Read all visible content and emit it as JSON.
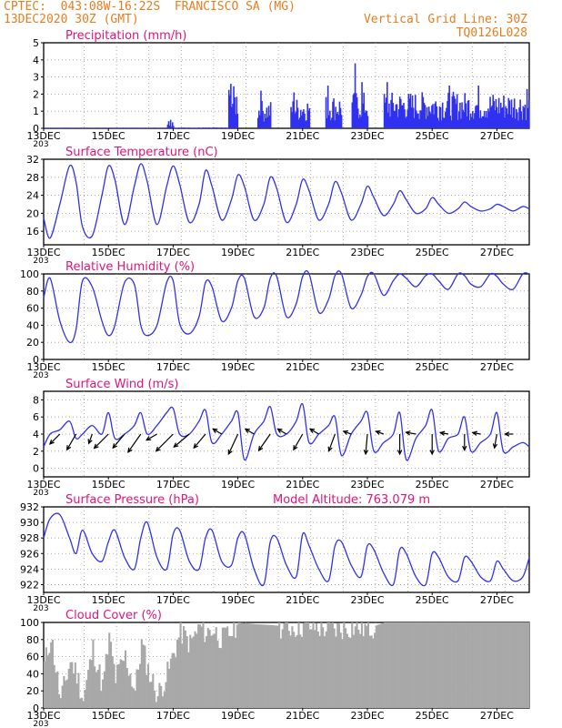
{
  "header": {
    "line1": "CPTEC:  043:08W-16:22S  FRANCISCO SA (MG)",
    "line2": "13DEC2020 30Z (GMT)",
    "grid_note": "Vertical Grid Line: 30Z",
    "code": "TQ0126L028"
  },
  "colors": {
    "header": "#e87d1e",
    "title": "#e0147c",
    "series": "#3030f0",
    "cloud": "#a8a8a8",
    "grid": "#999999"
  },
  "x_axis": {
    "days_from": 13,
    "days_to": 28,
    "tick_labels": [
      "13DEC",
      "15DEC",
      "17DEC",
      "19DEC",
      "21DEC",
      "23DEC",
      "25DEC",
      "27DEC"
    ],
    "cut_label": "203"
  },
  "chart_data": [
    {
      "id": "precip",
      "type": "bar",
      "title": "Precipitation (mm/h)",
      "ylim": [
        0,
        5
      ],
      "yticks": [
        0,
        1,
        2,
        3,
        4,
        5
      ],
      "color": "#3030f0",
      "x": [
        13,
        28
      ],
      "note": "values are hourly precipitation; dry until ~16.8 DEC, bursts 18.7–19.0, 19.6–20.0, 20.6–21.2, 21.7–22.2, 22.5–23.0 (peak ~3.8 at 22.6), continuous 23.5–28 mostly 1–2.4",
      "segments": [
        {
          "x": [
            13,
            16.8
          ],
          "level": 0.02
        },
        {
          "x": [
            16.8,
            17.0
          ],
          "level": 0.3
        },
        {
          "x": [
            17.0,
            18.7
          ],
          "level": 0.03
        },
        {
          "x": [
            18.7,
            19.0
          ],
          "level": 1.5
        },
        {
          "x": [
            19.6,
            20.0
          ],
          "level": 1.0
        },
        {
          "x": [
            20.6,
            21.2
          ],
          "level": 1.1
        },
        {
          "x": [
            21.7,
            22.2
          ],
          "level": 1.2
        },
        {
          "x": [
            22.5,
            23.0
          ],
          "level": 1.3
        },
        {
          "x": [
            23.5,
            28.0
          ],
          "level": 1.3
        }
      ],
      "peaks": [
        {
          "x": 16.9,
          "y": 0.5
        },
        {
          "x": 18.75,
          "y": 2.6
        },
        {
          "x": 19.7,
          "y": 2.2
        },
        {
          "x": 20.7,
          "y": 2.1
        },
        {
          "x": 21.75,
          "y": 2.5
        },
        {
          "x": 22.6,
          "y": 3.8
        },
        {
          "x": 22.8,
          "y": 2.7
        },
        {
          "x": 23.6,
          "y": 2.7
        },
        {
          "x": 25.5,
          "y": 2.5
        },
        {
          "x": 26.4,
          "y": 2.5
        },
        {
          "x": 27.9,
          "y": 2.3
        }
      ]
    },
    {
      "id": "temp",
      "type": "line",
      "title": "Surface Temperature (nC)",
      "ylim": [
        13,
        32
      ],
      "yticks": [
        16,
        20,
        24,
        28,
        32
      ],
      "color": "#3030f0",
      "x": [
        13,
        13.2,
        13.5,
        13.8,
        14.0,
        14.2,
        14.5,
        14.8,
        15.0,
        15.2,
        15.5,
        15.8,
        16.0,
        16.2,
        16.5,
        16.8,
        17.0,
        17.2,
        17.5,
        17.8,
        18.0,
        18.2,
        18.5,
        18.8,
        19.0,
        19.2,
        19.5,
        19.8,
        20.0,
        20.2,
        20.5,
        20.8,
        21.0,
        21.2,
        21.5,
        21.8,
        22.0,
        22.2,
        22.5,
        22.8,
        23.0,
        23.2,
        23.5,
        23.8,
        24.0,
        24.2,
        24.5,
        24.8,
        25.0,
        25.2,
        25.5,
        25.8,
        26.0,
        26.2,
        26.5,
        26.8,
        27.0,
        27.2,
        27.5,
        27.8,
        28.0
      ],
      "y": [
        19,
        14.5,
        22,
        30.5,
        27,
        17,
        15,
        24,
        30.5,
        27.5,
        17.5,
        26,
        31,
        27,
        17.5,
        26,
        30.5,
        26.5,
        18,
        22,
        29.5,
        26,
        18.5,
        23,
        28.5,
        26,
        18.5,
        22,
        28,
        25.5,
        18,
        22,
        27.5,
        25,
        18.5,
        22,
        27,
        24.5,
        18.5,
        22,
        26,
        23.5,
        19.5,
        22,
        25,
        23,
        20,
        21,
        23.5,
        22,
        20,
        21,
        22.5,
        21.5,
        20.5,
        21,
        22,
        21.5,
        20.5,
        21.5,
        21
      ]
    },
    {
      "id": "rh",
      "type": "line",
      "title": "Relative Humidity (%)",
      "ylim": [
        0,
        100
      ],
      "yticks": [
        0,
        20,
        40,
        60,
        80,
        100
      ],
      "color": "#3030f0",
      "x": [
        13,
        13.2,
        13.5,
        13.8,
        14.0,
        14.2,
        14.5,
        14.8,
        15.0,
        15.2,
        15.5,
        15.8,
        16.0,
        16.2,
        16.5,
        16.8,
        17.0,
        17.2,
        17.5,
        17.8,
        18.0,
        18.2,
        18.5,
        18.8,
        19.0,
        19.2,
        19.5,
        19.8,
        20.0,
        20.2,
        20.5,
        20.8,
        21.0,
        21.2,
        21.5,
        21.8,
        22.0,
        22.2,
        22.5,
        22.8,
        23.0,
        23.2,
        23.5,
        23.8,
        24.0,
        24.2,
        24.5,
        24.8,
        25.0,
        25.2,
        25.5,
        25.8,
        26.0,
        26.2,
        26.5,
        26.8,
        27.0,
        27.2,
        27.5,
        27.8,
        28.0
      ],
      "y": [
        72,
        95,
        45,
        20,
        35,
        92,
        85,
        45,
        28,
        40,
        90,
        88,
        40,
        28,
        40,
        90,
        92,
        42,
        30,
        50,
        90,
        85,
        45,
        60,
        92,
        95,
        50,
        60,
        95,
        97,
        50,
        65,
        97,
        100,
        55,
        70,
        98,
        100,
        60,
        75,
        97,
        100,
        75,
        92,
        100,
        95,
        85,
        98,
        100,
        92,
        82,
        100,
        98,
        88,
        85,
        100,
        97,
        88,
        82,
        100,
        100
      ]
    },
    {
      "id": "wind",
      "type": "line",
      "title": "Surface Wind (m/s)",
      "ylim": [
        -1,
        9
      ],
      "yticks": [
        0,
        2,
        4,
        6,
        8
      ],
      "color": "#3030f0",
      "x": [
        13,
        13.2,
        13.5,
        13.8,
        14.0,
        14.2,
        14.5,
        14.8,
        15.0,
        15.2,
        15.5,
        15.8,
        16.0,
        16.2,
        16.5,
        16.8,
        17.0,
        17.2,
        17.5,
        17.8,
        18.0,
        18.2,
        18.5,
        18.8,
        19.0,
        19.2,
        19.5,
        19.8,
        20.0,
        20.2,
        20.5,
        20.8,
        21.0,
        21.2,
        21.5,
        21.8,
        22.0,
        22.2,
        22.5,
        22.8,
        23.0,
        23.2,
        23.5,
        23.8,
        24.0,
        24.2,
        24.5,
        24.8,
        25.0,
        25.2,
        25.5,
        25.8,
        26.0,
        26.2,
        26.5,
        26.8,
        27.0,
        27.2,
        27.5,
        27.8,
        28.0
      ],
      "y": [
        2.5,
        4,
        4.5,
        5.5,
        3.5,
        4,
        5,
        4,
        6.5,
        3.5,
        4,
        5,
        6.5,
        4,
        5,
        6.5,
        7,
        4,
        4,
        5.5,
        6.8,
        3,
        4,
        5.5,
        6.5,
        1,
        4,
        5.5,
        7.2,
        4,
        4,
        5.5,
        7.5,
        3,
        4,
        5,
        6,
        1.5,
        4,
        5.5,
        6.5,
        2,
        3,
        4,
        6.5,
        1,
        3.5,
        5,
        6.8,
        2,
        3.5,
        4,
        6,
        2,
        3,
        4,
        6.5,
        2,
        2.5,
        3,
        2.5
      ],
      "arrows": [
        {
          "x": 13.5,
          "dir": 225,
          "len": 0.7
        },
        {
          "x": 14.0,
          "dir": 210,
          "len": 0.9
        },
        {
          "x": 14.5,
          "dir": 200,
          "len": 0.5
        },
        {
          "x": 15.0,
          "dir": 225,
          "len": 1.0
        },
        {
          "x": 15.5,
          "dir": 220,
          "len": 0.9
        },
        {
          "x": 16.0,
          "dir": 215,
          "len": 1.1
        },
        {
          "x": 16.5,
          "dir": 240,
          "len": 0.6
        },
        {
          "x": 17.0,
          "dir": 225,
          "len": 1.2
        },
        {
          "x": 17.5,
          "dir": 230,
          "len": 1.0
        },
        {
          "x": 18.0,
          "dir": 220,
          "len": 0.9
        },
        {
          "x": 18.5,
          "dir": 300,
          "len": 0.5
        },
        {
          "x": 19.0,
          "dir": 205,
          "len": 1.1
        },
        {
          "x": 19.5,
          "dir": 300,
          "len": 0.5
        },
        {
          "x": 20.0,
          "dir": 215,
          "len": 1.0
        },
        {
          "x": 20.5,
          "dir": 300,
          "len": 0.5
        },
        {
          "x": 21.0,
          "dir": 210,
          "len": 0.9
        },
        {
          "x": 21.5,
          "dir": 300,
          "len": 0.5
        },
        {
          "x": 22.0,
          "dir": 200,
          "len": 0.9
        },
        {
          "x": 22.5,
          "dir": 290,
          "len": 0.4
        },
        {
          "x": 23.0,
          "dir": 185,
          "len": 1.0
        },
        {
          "x": 23.5,
          "dir": 290,
          "len": 0.4
        },
        {
          "x": 24.0,
          "dir": 180,
          "len": 1.0
        },
        {
          "x": 24.5,
          "dir": 280,
          "len": 0.5
        },
        {
          "x": 25.0,
          "dir": 180,
          "len": 1.0
        },
        {
          "x": 25.5,
          "dir": 280,
          "len": 0.4
        },
        {
          "x": 26.0,
          "dir": 180,
          "len": 0.8
        },
        {
          "x": 26.5,
          "dir": 280,
          "len": 0.4
        },
        {
          "x": 27.0,
          "dir": 190,
          "len": 0.7
        },
        {
          "x": 27.5,
          "dir": 270,
          "len": 0.4
        }
      ]
    },
    {
      "id": "press",
      "type": "line",
      "title": "Surface Pressure (hPa)",
      "subtitle": "Model Altitude: 763.079  m",
      "ylim": [
        921,
        932
      ],
      "yticks": [
        922,
        924,
        926,
        928,
        930,
        932
      ],
      "color": "#3030f0",
      "x": [
        13,
        13.2,
        13.5,
        13.8,
        14.0,
        14.2,
        14.5,
        14.8,
        15.0,
        15.2,
        15.5,
        15.8,
        16.0,
        16.2,
        16.5,
        16.8,
        17.0,
        17.2,
        17.5,
        17.8,
        18.0,
        18.2,
        18.5,
        18.8,
        19.0,
        19.2,
        19.5,
        19.8,
        20.0,
        20.2,
        20.5,
        20.8,
        21.0,
        21.2,
        21.5,
        21.8,
        22.0,
        22.2,
        22.5,
        22.8,
        23.0,
        23.2,
        23.5,
        23.8,
        24.0,
        24.2,
        24.5,
        24.8,
        25.0,
        25.2,
        25.5,
        25.8,
        26.0,
        26.2,
        26.5,
        26.8,
        27.0,
        27.2,
        27.5,
        27.8,
        28.0
      ],
      "y": [
        928,
        930.5,
        931,
        928,
        926,
        929,
        926,
        925,
        927.5,
        929,
        925.5,
        924,
        928,
        930,
        925.5,
        924,
        928.5,
        929,
        925,
        924,
        928,
        929,
        925,
        924.5,
        928,
        928.5,
        924,
        922,
        927.5,
        928,
        924.5,
        923,
        928.5,
        927,
        924,
        922.5,
        927,
        927.5,
        924.5,
        923,
        927,
        926.5,
        923.5,
        922,
        926.5,
        926,
        923,
        922,
        926,
        925.5,
        923,
        922.5,
        925.5,
        925,
        923,
        922.5,
        925,
        924,
        922.5,
        923,
        925.5
      ]
    },
    {
      "id": "cloud",
      "type": "bar",
      "title": "Cloud Cover (%)",
      "ylim": [
        0,
        100
      ],
      "yticks": [
        0,
        20,
        40,
        60,
        80,
        100
      ],
      "color": "#a8a8a8",
      "x": [
        13,
        13.2,
        13.5,
        13.8,
        14.0,
        14.2,
        14.5,
        14.8,
        15.0,
        15.2,
        15.5,
        15.8,
        16.0,
        16.2,
        16.5,
        16.8,
        17.0,
        17.2,
        17.5,
        17.8,
        18.0,
        18.2,
        18.5,
        18.8,
        19.0,
        19.5,
        20.0,
        20.5,
        21.0,
        21.5,
        22.0,
        22.5,
        23.0,
        23.5,
        24.0,
        24.5,
        25.0,
        25.5,
        26.0,
        26.5,
        27.0,
        27.5,
        28.0
      ],
      "y": [
        50,
        85,
        8,
        55,
        40,
        10,
        70,
        25,
        80,
        35,
        60,
        20,
        75,
        45,
        15,
        40,
        65,
        90,
        75,
        95,
        88,
        92,
        80,
        90,
        100,
        98,
        97,
        95,
        96,
        94,
        92,
        95,
        93,
        100,
        100,
        100,
        100,
        100,
        100,
        100,
        100,
        100,
        100
      ]
    }
  ]
}
